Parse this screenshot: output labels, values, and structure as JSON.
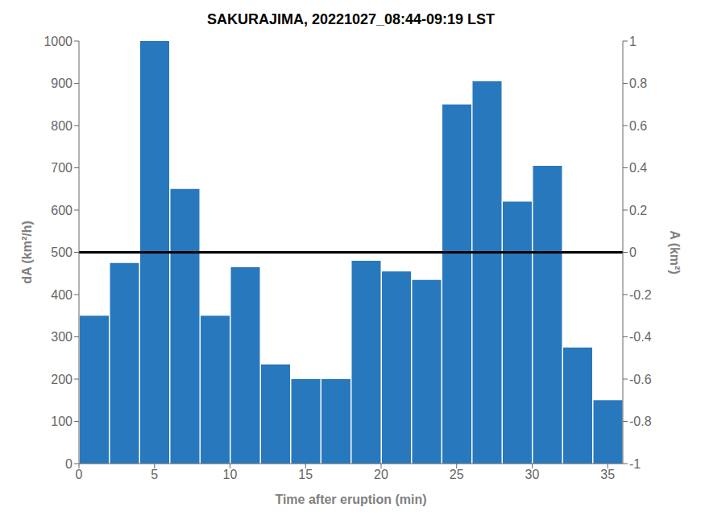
{
  "chart_data": {
    "type": "bar",
    "title": "SAKURAJIMA, 20221027_08:44-09:19 LST",
    "x": [
      1,
      3,
      5,
      7,
      9,
      11,
      13,
      15,
      17,
      19,
      21,
      23,
      25,
      27,
      29,
      31,
      33,
      35
    ],
    "values": [
      350,
      475,
      1000,
      650,
      350,
      465,
      235,
      200,
      200,
      480,
      455,
      435,
      850,
      905,
      620,
      705,
      275,
      150
    ],
    "color": "#2878BE",
    "xlabel": "Time after eruption (min)",
    "ylabel": "dA (km²/h)",
    "y2label": "A (km²)",
    "xlim": [
      0,
      36
    ],
    "xticks": [
      0,
      5,
      10,
      15,
      20,
      25,
      30,
      35
    ],
    "ylim": [
      0,
      1000
    ],
    "yticks": [
      0,
      100,
      200,
      300,
      400,
      500,
      600,
      700,
      800,
      900,
      1000
    ],
    "y2lim": [
      -1,
      1
    ],
    "y2ticks": [
      -1,
      -0.8,
      -0.6,
      -0.4,
      -0.2,
      0,
      0.2,
      0.4,
      0.6,
      0.8,
      1
    ],
    "hline": {
      "y": 500,
      "color": "black"
    },
    "grid": false
  }
}
